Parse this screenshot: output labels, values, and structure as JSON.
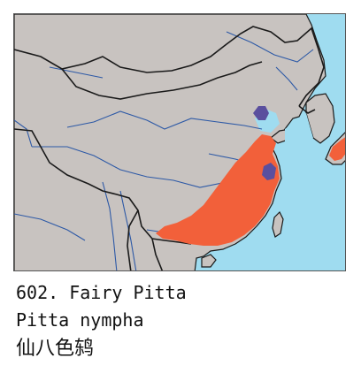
{
  "caption": {
    "line1": "602. Fairy Pitta",
    "line2": "Pitta nympha",
    "line3": "仙八色鸫"
  },
  "colors": {
    "sea": "#9fdcf0",
    "land": "#c8c3c0",
    "border": "#1a1a1a",
    "river": "#2d59a6",
    "breeding": "#f2603a",
    "resident": "#5a4f9e"
  },
  "map": {
    "icon": "range-map"
  }
}
